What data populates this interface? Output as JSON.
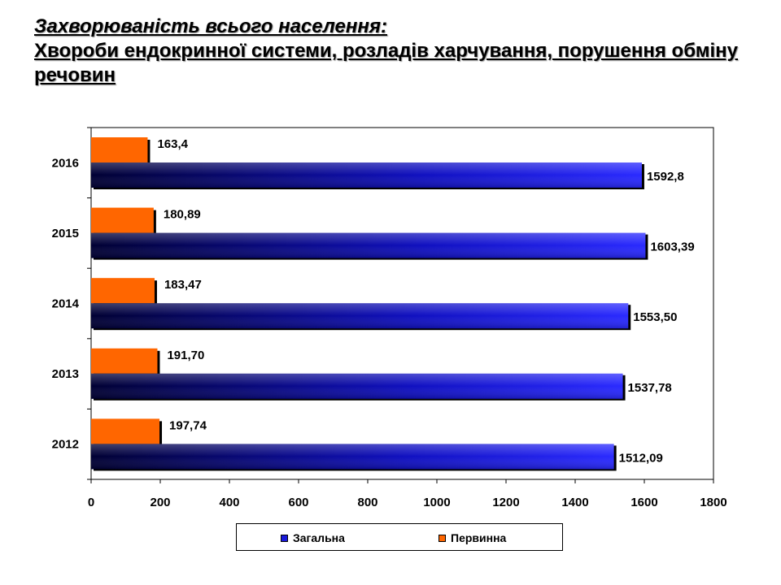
{
  "title": {
    "line1": "Захворюваність всього населення:",
    "line2": "Хвороби ендокринної системи, розладів харчування, порушення обміну речовин"
  },
  "colors": {
    "total": "#1a1adb",
    "total_dark": "#000033",
    "primary": "#ff6600"
  },
  "chart_data": {
    "type": "bar",
    "orientation": "horizontal",
    "categories": [
      "2016",
      "2015",
      "2014",
      "2013",
      "2012"
    ],
    "series": [
      {
        "name": "Первинна",
        "values": [
          163.4,
          180.89,
          183.47,
          191.7,
          197.74
        ],
        "labels": [
          "163,4",
          "180,89",
          "183,47",
          "191,70",
          "197,74"
        ]
      },
      {
        "name": "Загальна",
        "values": [
          1592.8,
          1603.39,
          1553.5,
          1537.78,
          1512.09
        ],
        "labels": [
          "1592,8",
          "1603,39",
          "1553,50",
          "1537,78",
          "1512,09"
        ]
      }
    ],
    "xlim": [
      0,
      1800
    ],
    "xticks": [
      "0",
      "200",
      "400",
      "600",
      "800",
      "1000",
      "1200",
      "1400",
      "1600",
      "1800"
    ],
    "grid": false,
    "legend": "bottom"
  },
  "legend": {
    "total": "Загальна",
    "primary": "Первинна"
  }
}
